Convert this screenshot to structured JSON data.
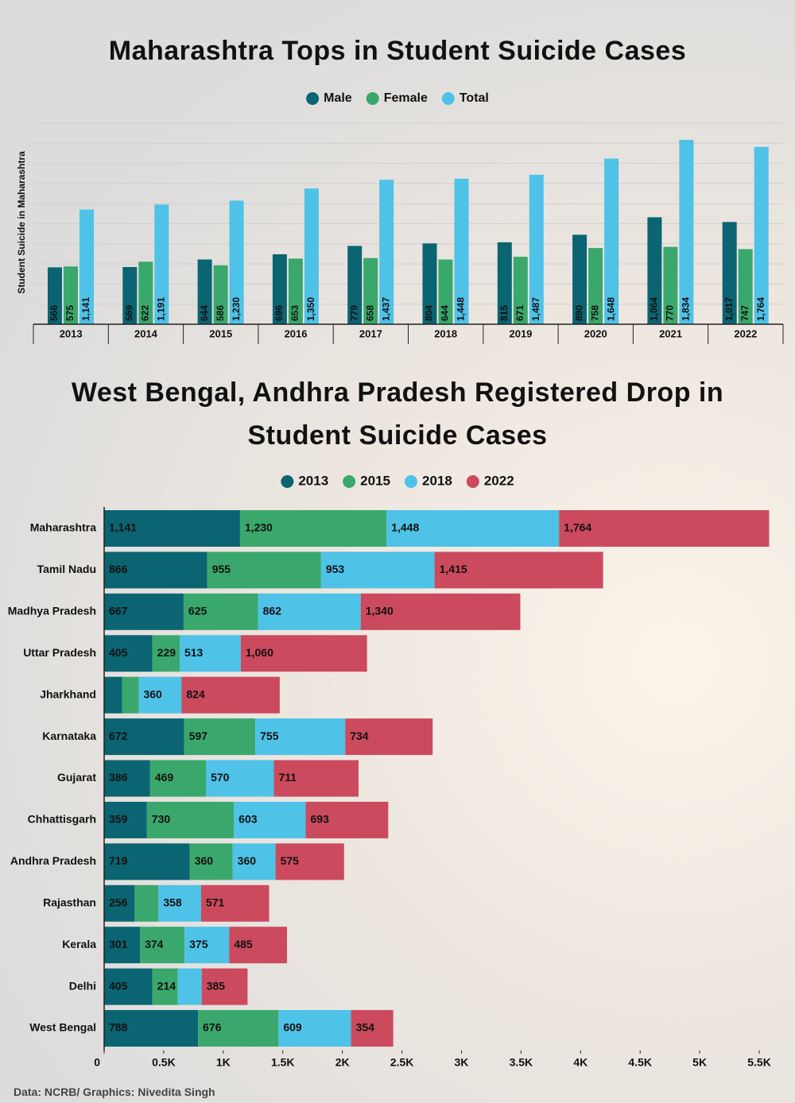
{
  "chart_data": [
    {
      "type": "bar",
      "title": "Maharashtra Tops in Student Suicide Cases",
      "ylabel": "Student Suicide in Maharashtra",
      "categories": [
        "2013",
        "2014",
        "2015",
        "2016",
        "2017",
        "2018",
        "2019",
        "2020",
        "2021",
        "2022"
      ],
      "series": [
        {
          "name": "Male",
          "color": "#0b6472",
          "values": [
            566,
            569,
            644,
            696,
            779,
            804,
            815,
            890,
            1064,
            1017
          ],
          "value_labels": [
            "566",
            "569",
            "644",
            "696",
            "779",
            "804",
            "815",
            "890",
            "1,064",
            "1,017"
          ]
        },
        {
          "name": "Female",
          "color": "#3aa86c",
          "values": [
            575,
            622,
            586,
            653,
            658,
            644,
            671,
            758,
            770,
            747
          ],
          "value_labels": [
            "575",
            "622",
            "586",
            "653",
            "658",
            "644",
            "671",
            "758",
            "770",
            "747"
          ]
        },
        {
          "name": "Total",
          "color": "#4fc2e8",
          "values": [
            1141,
            1191,
            1230,
            1350,
            1437,
            1448,
            1487,
            1648,
            1834,
            1764
          ],
          "value_labels": [
            "1,141",
            "1,191",
            "1,230",
            "1,350",
            "1,437",
            "1,448",
            "1,487",
            "1,648",
            "1,834",
            "1,764"
          ]
        }
      ],
      "ylim": [
        0,
        2000
      ],
      "yticks": [
        0,
        200,
        400,
        600,
        800,
        1000,
        1200,
        1400,
        1600,
        1800,
        2000
      ],
      "grid": true
    },
    {
      "type": "stacked-barh",
      "title": "West Bengal, Andhra Pradesh Registered Drop in Student Suicide Cases",
      "categories": [
        "Maharashtra",
        "Tamil Nadu",
        "Madhya Pradesh",
        "Uttar Pradesh",
        "Jharkhand",
        "Karnataka",
        "Gujarat",
        "Chhattisgarh",
        "Andhra Pradesh",
        "Rajasthan",
        "Kerala",
        "Delhi",
        "West Bengal"
      ],
      "series": [
        {
          "name": "2013",
          "color": "#0b6472",
          "values": [
            1141,
            866,
            667,
            405,
            150,
            672,
            386,
            359,
            719,
            256,
            301,
            405,
            788
          ],
          "value_labels": [
            "1,141",
            "866",
            "667",
            "405",
            null,
            "672",
            "386",
            "359",
            "719",
            "256",
            "301",
            "405",
            "788"
          ]
        },
        {
          "name": "2015",
          "color": "#3aa86c",
          "values": [
            1230,
            955,
            625,
            229,
            140,
            597,
            469,
            730,
            360,
            200,
            374,
            214,
            676
          ],
          "value_labels": [
            "1,230",
            "955",
            "625",
            "229",
            null,
            "597",
            "469",
            "730",
            "360",
            null,
            "374",
            "214",
            "676"
          ]
        },
        {
          "name": "2018",
          "color": "#4fc2e8",
          "values": [
            1448,
            953,
            862,
            513,
            360,
            755,
            570,
            603,
            360,
            358,
            375,
            200,
            609
          ],
          "value_labels": [
            "1,448",
            "953",
            "862",
            "513",
            "360",
            "755",
            "570",
            "603",
            "360",
            "358",
            "375",
            null,
            "609"
          ]
        },
        {
          "name": "2022",
          "color": "#cc4a5e",
          "values": [
            1764,
            1415,
            1340,
            1060,
            824,
            734,
            711,
            693,
            575,
            571,
            485,
            385,
            354
          ],
          "value_labels": [
            "1,764",
            "1,415",
            "1,340",
            "1,060",
            "824",
            "734",
            "711",
            "693",
            "575",
            "571",
            "485",
            "385",
            "354"
          ]
        }
      ],
      "xlim": [
        0,
        5700
      ],
      "xticks": [
        0,
        {
          "value": 500,
          "label": "0.5K"
        },
        {
          "value": 1000,
          "label": "1K"
        },
        {
          "value": 1500,
          "label": "1.5K"
        },
        {
          "value": 2000,
          "label": "2K"
        },
        {
          "value": 2500,
          "label": "2.5K"
        },
        {
          "value": 3000,
          "label": "3K"
        },
        {
          "value": 3500,
          "label": "3.5K"
        },
        {
          "value": 4000,
          "label": "4K"
        },
        {
          "value": 4500,
          "label": "4.5K"
        },
        {
          "value": 5000,
          "label": "5K"
        },
        {
          "value": 5500,
          "label": "5.5K"
        }
      ]
    }
  ],
  "source": "Data: NCRB/ Graphics: Nivedita Singh"
}
